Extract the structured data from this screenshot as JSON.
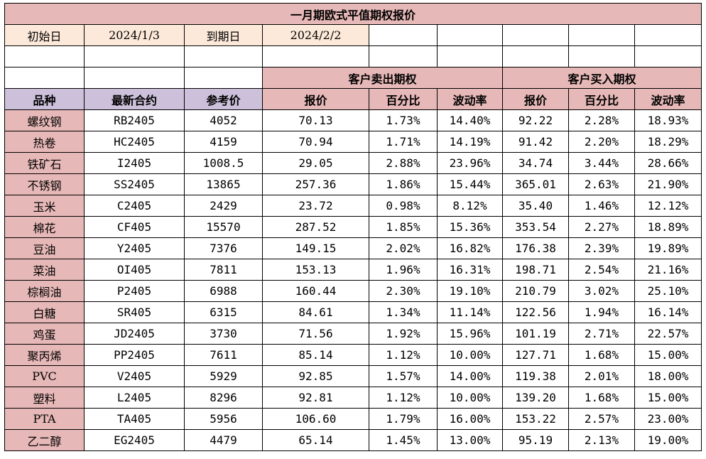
{
  "title": "一月期欧式平值期权报价",
  "dates": {
    "start_label": "初始日",
    "start_value": "2024/1/3",
    "end_label": "到期日",
    "end_value": "2024/2/2"
  },
  "groups": {
    "sell": "客户卖出期权",
    "buy": "客户买入期权"
  },
  "headers": [
    "品种",
    "最新合约",
    "参考价",
    "报价",
    "百分比",
    "波动率",
    "报价",
    "百分比",
    "波动率"
  ],
  "rows": [
    [
      "螺纹钢",
      "RB2405",
      "4052",
      "70.13",
      "1.73%",
      "14.40%",
      "92.22",
      "2.28%",
      "18.93%"
    ],
    [
      "热卷",
      "HC2405",
      "4159",
      "70.94",
      "1.71%",
      "14.19%",
      "91.42",
      "2.20%",
      "18.29%"
    ],
    [
      "铁矿石",
      "I2405",
      "1008.5",
      "29.05",
      "2.88%",
      "23.96%",
      "34.74",
      "3.44%",
      "28.66%"
    ],
    [
      "不锈钢",
      "SS2405",
      "13865",
      "257.36",
      "1.86%",
      "15.44%",
      "365.01",
      "2.63%",
      "21.90%"
    ],
    [
      "玉米",
      "C2405",
      "2429",
      "23.72",
      "0.98%",
      "8.12%",
      "35.40",
      "1.46%",
      "12.12%"
    ],
    [
      "棉花",
      "CF405",
      "15570",
      "287.52",
      "1.85%",
      "15.36%",
      "353.54",
      "2.27%",
      "18.89%"
    ],
    [
      "豆油",
      "Y2405",
      "7376",
      "149.15",
      "2.02%",
      "16.82%",
      "176.38",
      "2.39%",
      "19.89%"
    ],
    [
      "菜油",
      "OI405",
      "7811",
      "153.13",
      "1.96%",
      "16.31%",
      "198.71",
      "2.54%",
      "21.16%"
    ],
    [
      "棕榈油",
      "P2405",
      "6988",
      "160.44",
      "2.30%",
      "19.10%",
      "210.79",
      "3.02%",
      "25.10%"
    ],
    [
      "白糖",
      "SR405",
      "6315",
      "84.61",
      "1.34%",
      "11.14%",
      "122.56",
      "1.94%",
      "16.14%"
    ],
    [
      "鸡蛋",
      "JD2405",
      "3730",
      "71.56",
      "1.92%",
      "15.96%",
      "101.19",
      "2.71%",
      "22.57%"
    ],
    [
      "聚丙烯",
      "PP2405",
      "7611",
      "85.14",
      "1.12%",
      "10.00%",
      "127.71",
      "1.68%",
      "15.00%"
    ],
    [
      "PVC",
      "V2405",
      "5929",
      "92.85",
      "1.57%",
      "14.00%",
      "119.38",
      "2.01%",
      "18.00%"
    ],
    [
      "塑料",
      "L2405",
      "8296",
      "92.81",
      "1.12%",
      "10.00%",
      "139.20",
      "1.68%",
      "15.00%"
    ],
    [
      "PTA",
      "TA405",
      "5956",
      "106.60",
      "1.79%",
      "16.00%",
      "153.22",
      "2.57%",
      "23.00%"
    ],
    [
      "乙二醇",
      "EG2405",
      "4479",
      "65.14",
      "1.45%",
      "13.00%",
      "95.19",
      "2.13%",
      "19.00%"
    ]
  ],
  "colors": {
    "title_bg": "#e6b8b7",
    "date_bg": "#fde9d9",
    "header_bg": "#ccc0da",
    "name_bg": "#e6b8b7"
  }
}
